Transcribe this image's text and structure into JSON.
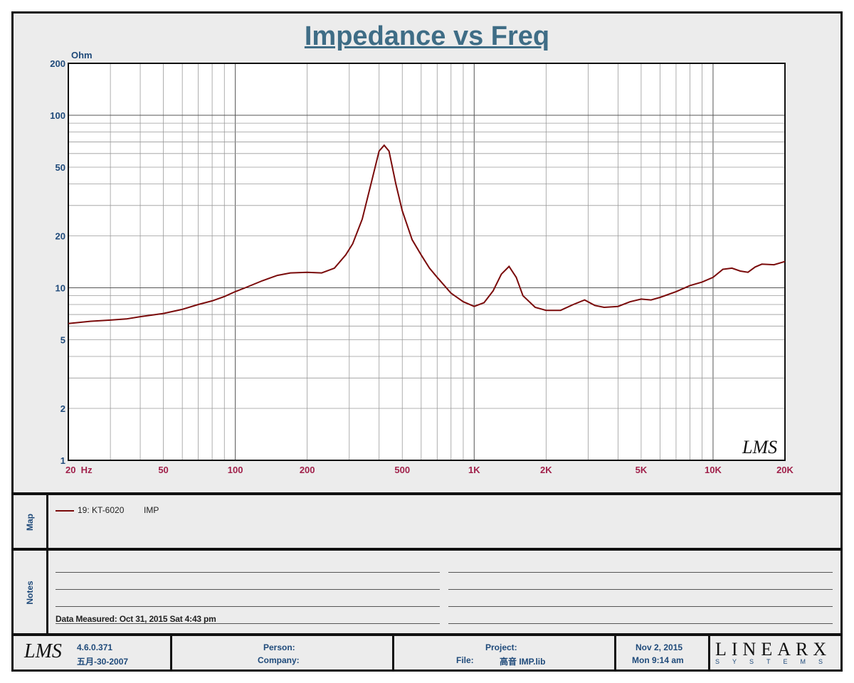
{
  "title": "Impedance vs Freq",
  "chart_data": {
    "type": "line",
    "title": "Impedance vs Freq",
    "ylabel": "Ohm",
    "xscale": "log",
    "yscale": "log",
    "xlim": [
      20,
      20000
    ],
    "ylim": [
      1,
      200
    ],
    "grid": true,
    "x_tick_labels": [
      "20  Hz",
      "50",
      "100",
      "200",
      "500",
      "1K",
      "2K",
      "5K",
      "10K",
      "20K"
    ],
    "x_tick_values": [
      20,
      50,
      100,
      200,
      500,
      1000,
      2000,
      5000,
      10000,
      20000
    ],
    "y_tick_labels": [
      "200",
      "100",
      "50",
      "20",
      "10",
      "5",
      "2",
      "1"
    ],
    "y_tick_values": [
      200,
      100,
      50,
      20,
      10,
      5,
      2,
      1
    ],
    "line_color": "#7a0a0a",
    "series": [
      {
        "name": "19: KT-6020",
        "x": [
          20,
          25,
          30,
          35,
          40,
          50,
          60,
          70,
          80,
          90,
          100,
          110,
          130,
          150,
          170,
          200,
          230,
          260,
          290,
          310,
          340,
          370,
          400,
          420,
          440,
          470,
          500,
          550,
          600,
          650,
          700,
          800,
          900,
          1000,
          1100,
          1200,
          1300,
          1400,
          1500,
          1600,
          1800,
          2000,
          2300,
          2600,
          2900,
          3200,
          3500,
          4000,
          4500,
          5000,
          5500,
          6000,
          7000,
          8000,
          9000,
          10000,
          11000,
          12000,
          13000,
          14000,
          15000,
          16000,
          18000,
          20000
        ],
        "y": [
          6.2,
          6.4,
          6.5,
          6.6,
          6.8,
          7.1,
          7.5,
          8.0,
          8.4,
          8.9,
          9.5,
          10.0,
          11.0,
          11.8,
          12.2,
          12.3,
          12.2,
          13.0,
          15.5,
          18.0,
          25.0,
          40.0,
          62.0,
          67.0,
          62.0,
          40.0,
          28.0,
          19.0,
          15.5,
          13.0,
          11.5,
          9.3,
          8.3,
          7.8,
          8.2,
          9.6,
          12.0,
          13.3,
          11.5,
          9.0,
          7.7,
          7.4,
          7.4,
          8.0,
          8.5,
          7.9,
          7.7,
          7.8,
          8.3,
          8.6,
          8.5,
          8.8,
          9.5,
          10.3,
          10.8,
          11.5,
          12.8,
          13.0,
          12.5,
          12.3,
          13.2,
          13.7,
          13.6,
          14.2
        ]
      }
    ]
  },
  "watermark": "LMS",
  "map": {
    "label": "Map",
    "legend_name": "19: KT-6020",
    "legend_type": "IMP"
  },
  "notes": {
    "label": "Notes",
    "measured": "Data Measured: Oct 31, 2015  Sat  4:43 pm"
  },
  "footer": {
    "logo": "LMS",
    "version": "4.6.0.371",
    "version_date": "五月-30-2007",
    "person_label": "Person:",
    "company_label": "Company:",
    "project_label": "Project:",
    "file_label": "File:",
    "file_value": "高音 IMP.lib",
    "date": "Nov  2, 2015",
    "time": "Mon  9:14 am",
    "brand_big": "LINEARX",
    "brand_small": "SYSTEMS"
  }
}
